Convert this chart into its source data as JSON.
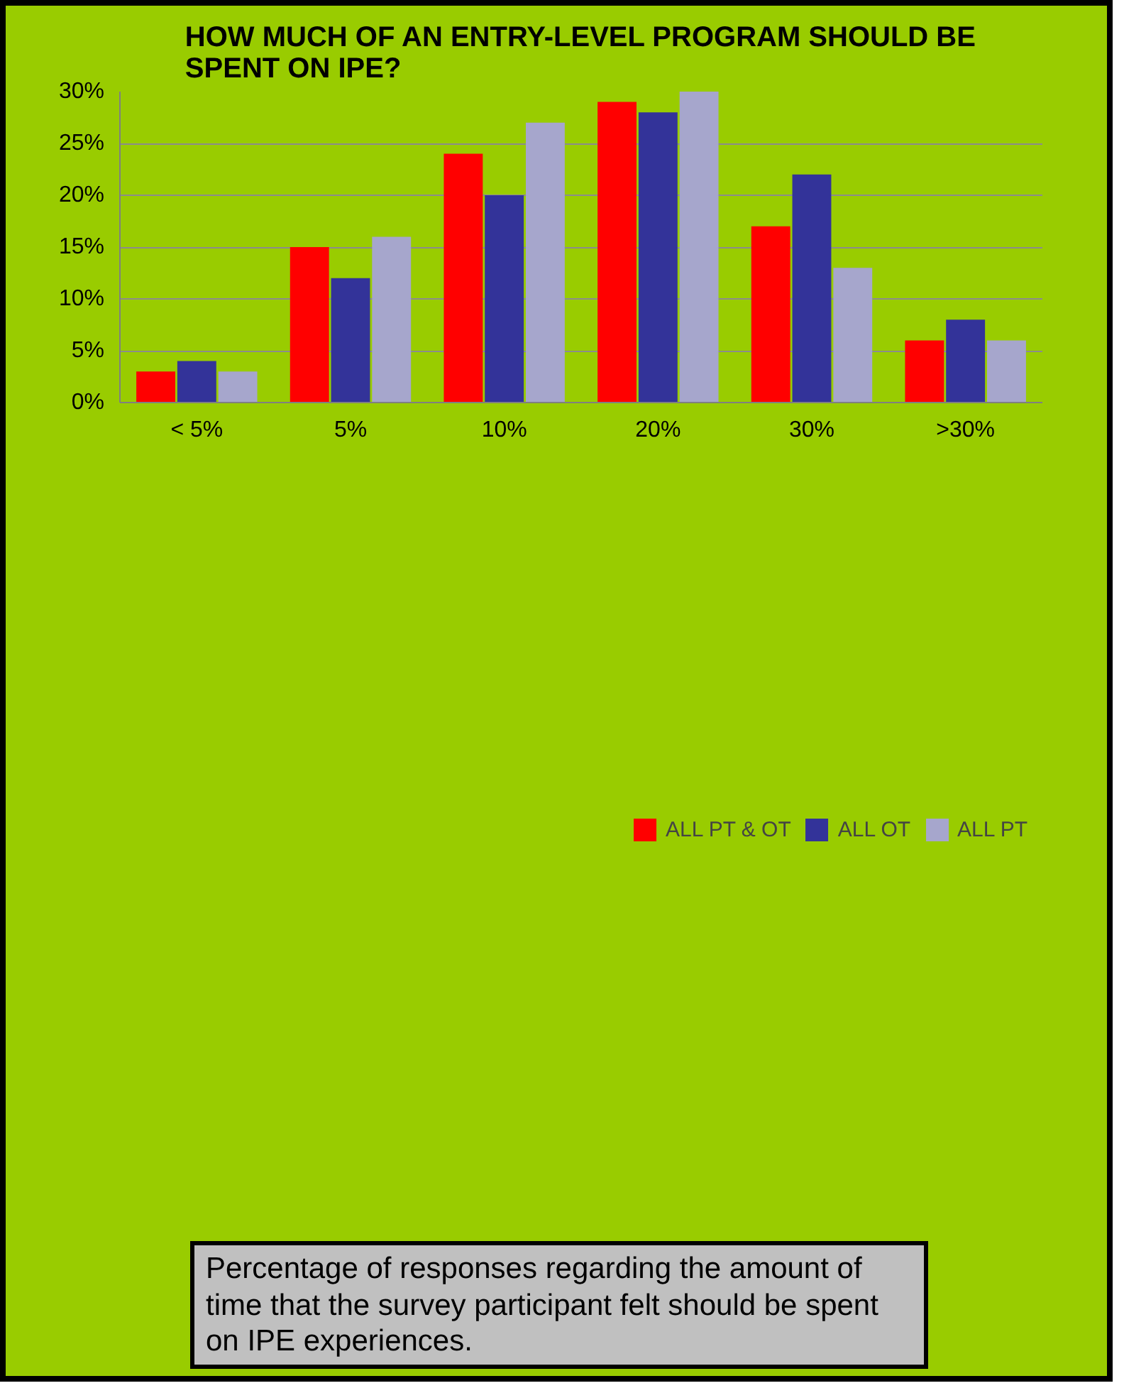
{
  "chart_data": {
    "type": "bar",
    "title": "HOW MUCH OF AN ENTRY-LEVEL PROGRAM SHOULD BE SPENT ON IPE?",
    "categories": [
      "< 5%",
      "5%",
      "10%",
      "20%",
      "30%",
      ">30%"
    ],
    "series": [
      {
        "name": "ALL PT & OT",
        "color": "#ff0000",
        "values": [
          3,
          15,
          24,
          29,
          17,
          6
        ]
      },
      {
        "name": "ALL OT",
        "color": "#333399",
        "values": [
          4,
          12,
          20,
          28,
          22,
          8
        ]
      },
      {
        "name": "ALL PT",
        "color": "#a6a6cc",
        "values": [
          3,
          16,
          27,
          30,
          13,
          6
        ]
      }
    ],
    "ylim": [
      0,
      30
    ],
    "yticks": [
      {
        "value": 0,
        "label": "0%"
      },
      {
        "value": 5,
        "label": "5%"
      },
      {
        "value": 10,
        "label": "10%"
      },
      {
        "value": 15,
        "label": "15%"
      },
      {
        "value": 20,
        "label": "20%"
      },
      {
        "value": 25,
        "label": "25%"
      },
      {
        "value": 30,
        "label": "30%"
      }
    ],
    "grid": "y",
    "legend": "bottom",
    "annotations": [
      "Percentage of responses regarding the amount of time that the survey participant felt should be spent on IPE experiences."
    ]
  }
}
